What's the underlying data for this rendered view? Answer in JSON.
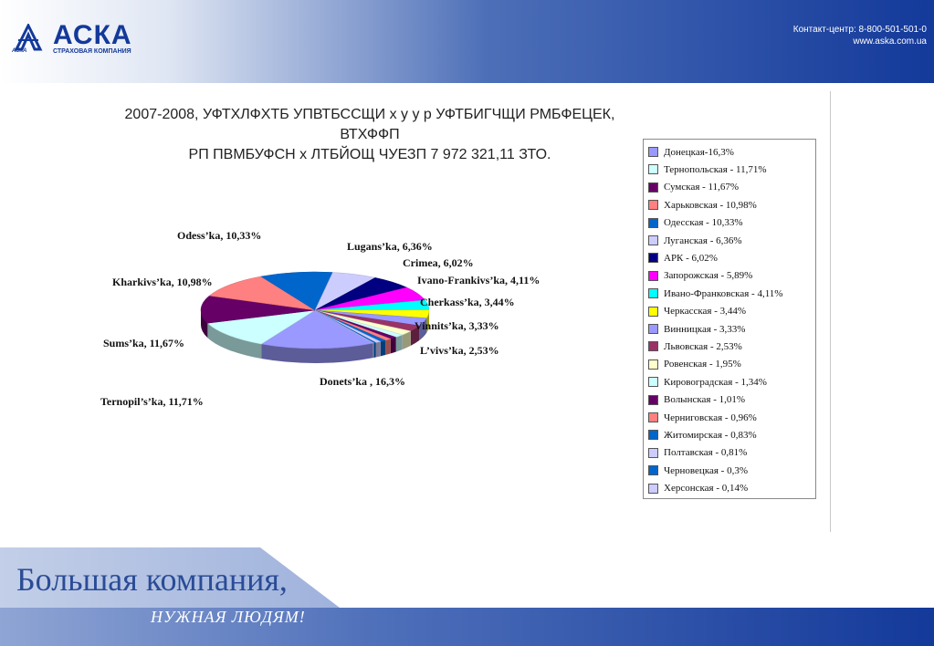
{
  "header": {
    "brand": "АСКА",
    "brand_small": "АСКА",
    "brand_sub": "СТРАХОВАЯ КОМПАНИЯ",
    "contact_line": "Контакт-центр:  8-800-501-501-0",
    "website": "www.aska.com.ua"
  },
  "slide": {
    "title_line1": "2007-2008, УФТХЛФХТБ УПВТБССЩИ х у у р  УФТБИГЧЩИ РМБФЕЦЕК, ВТХФФП",
    "title_line2": "РП ПВМБУФСН х ЛТБЙОЩ ЧУЕЗП  7 972 321,11 ЗТО."
  },
  "footer": {
    "slogan_line1": "Большая компания,",
    "slogan_line2": "НУЖНАЯ ЛЮДЯМ!"
  },
  "chart_data": {
    "type": "pie",
    "unit": "%",
    "slices": [
      {
        "legend": "Донецкая-16,3%",
        "value": 16.3,
        "color": "#9999ff"
      },
      {
        "legend": "Тернопольская - 11,71%",
        "value": 11.71,
        "color": "#ccffff"
      },
      {
        "legend": "Сумская - 11,67%",
        "value": 11.67,
        "color": "#660066"
      },
      {
        "legend": "Харьковская - 10,98%",
        "value": 10.98,
        "color": "#ff8080"
      },
      {
        "legend": "Одесская - 10,33%",
        "value": 10.33,
        "color": "#0066cc"
      },
      {
        "legend": "Луганская - 6,36%",
        "value": 6.36,
        "color": "#ccccff"
      },
      {
        "legend": "АРК - 6,02%",
        "value": 6.02,
        "color": "#000080"
      },
      {
        "legend": "Запорожская - 5,89%",
        "value": 5.89,
        "color": "#ff00ff"
      },
      {
        "legend": "Ивано-Франковская - 4,11%",
        "value": 4.11,
        "color": "#00ffff"
      },
      {
        "legend": "Черкасская - 3,44%",
        "value": 3.44,
        "color": "#ffff00"
      },
      {
        "legend": "Винницкая - 3,33%",
        "value": 3.33,
        "color": "#9999ff"
      },
      {
        "legend": "Львовская - 2,53%",
        "value": 2.53,
        "color": "#993366"
      },
      {
        "legend": "Ровенская - 1,95%",
        "value": 1.95,
        "color": "#ffffcc"
      },
      {
        "legend": "Кировоградская - 1,34%",
        "value": 1.34,
        "color": "#ccffff"
      },
      {
        "legend": "Волынская - 1,01%",
        "value": 1.01,
        "color": "#660066"
      },
      {
        "legend": "Черниговская - 0,96%",
        "value": 0.96,
        "color": "#ff8080"
      },
      {
        "legend": "Житомирская - 0,83%",
        "value": 0.83,
        "color": "#0066cc"
      },
      {
        "legend": "Полтавская - 0,81%",
        "value": 0.81,
        "color": "#ccccff"
      },
      {
        "legend": "Черновецкая - 0,3%",
        "value": 0.3,
        "color": "#0066cc"
      },
      {
        "legend": "Херсонская - 0,14%",
        "value": 0.14,
        "color": "#ccccff"
      }
    ],
    "data_labels": [
      "Odess’ka, 10,33%",
      "Lugans’ka,  6,36%",
      "Crimea,  6,02%",
      "Kharkivs’ka, 10,98%",
      "Ivano-Frankivs’ka,  4,11%",
      "Cherkass’ka,  3,44%",
      "Vinnits’ka, 3,33%",
      "Sums’ka, 11,67%",
      "L’vivs’ka,  2,53%",
      "Donets’ka , 16,3%",
      "Ternopil’s’ka, 11,71%"
    ],
    "legend_position": "right"
  }
}
